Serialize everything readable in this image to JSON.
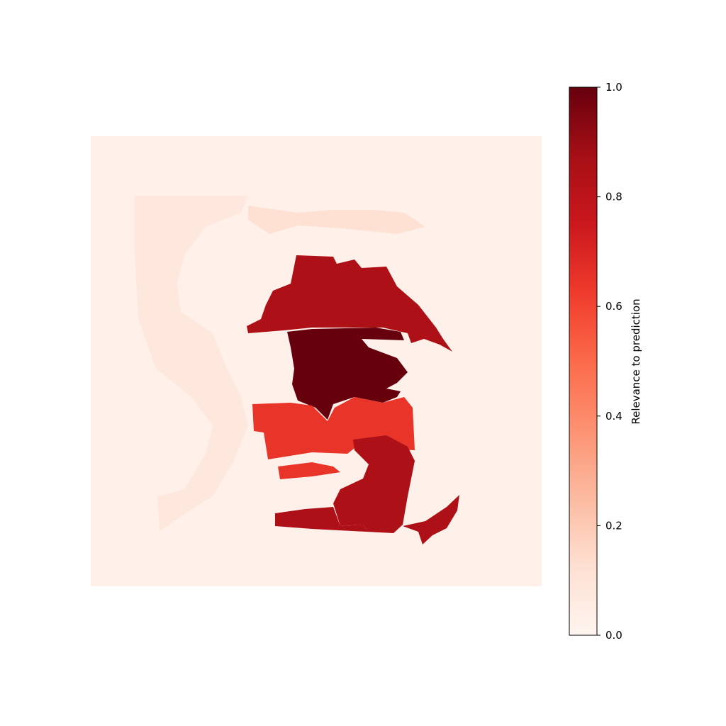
{
  "chart_data": {
    "type": "heatmap",
    "title": "",
    "colormap": "Reds",
    "colorbar": {
      "label": "Relevance to prediction",
      "range": [
        0.0,
        1.0
      ],
      "ticks": [
        0.0,
        0.2,
        0.4,
        0.6,
        0.8,
        1.0
      ],
      "tick_labels": [
        "0.0",
        "0.2",
        "0.4",
        "0.6",
        "0.8",
        "1.0"
      ],
      "placement": "right"
    },
    "grid": false,
    "axes_visible": false,
    "regions": [
      {
        "name": "background",
        "value": 0.03
      },
      {
        "name": "outer-band",
        "value": 0.08
      },
      {
        "name": "top-band",
        "value": 0.12
      },
      {
        "name": "top-central",
        "value": 0.85
      },
      {
        "name": "center-core",
        "value": 1.0
      },
      {
        "name": "middle-band",
        "value": 0.65
      },
      {
        "name": "lower-left",
        "value": 0.65
      },
      {
        "name": "lower-right",
        "value": 0.85
      },
      {
        "name": "bottom-band",
        "value": 0.85
      },
      {
        "name": "bottom-tail",
        "value": 0.85
      }
    ]
  }
}
